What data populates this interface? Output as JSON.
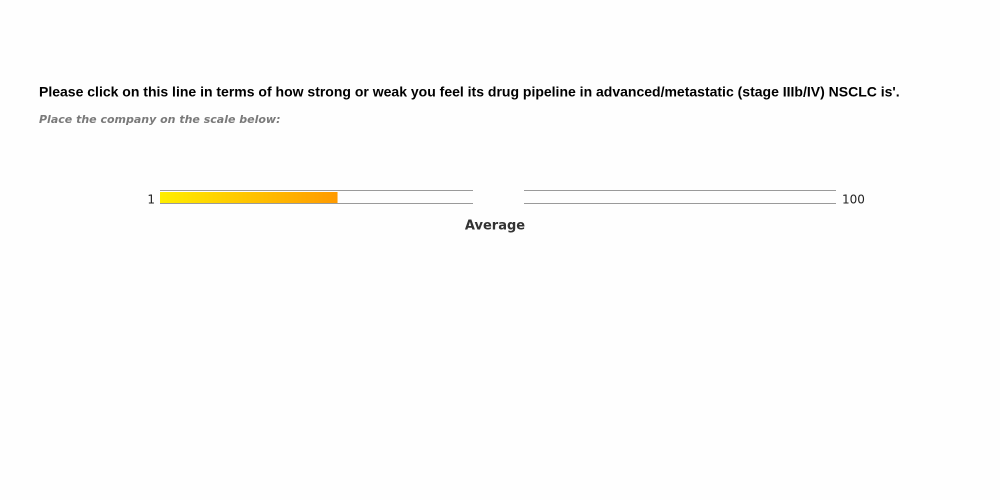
{
  "question": "Please click on this line in terms of how strong or weak you feel its drug pipeline in advanced/metastatic (stage IIIb/IV) NSCLC is'.",
  "instruction": "Place the company on the scale below:",
  "scale": {
    "min": 1,
    "max": 100,
    "midpoint_label": "Average",
    "value": 27
  }
}
